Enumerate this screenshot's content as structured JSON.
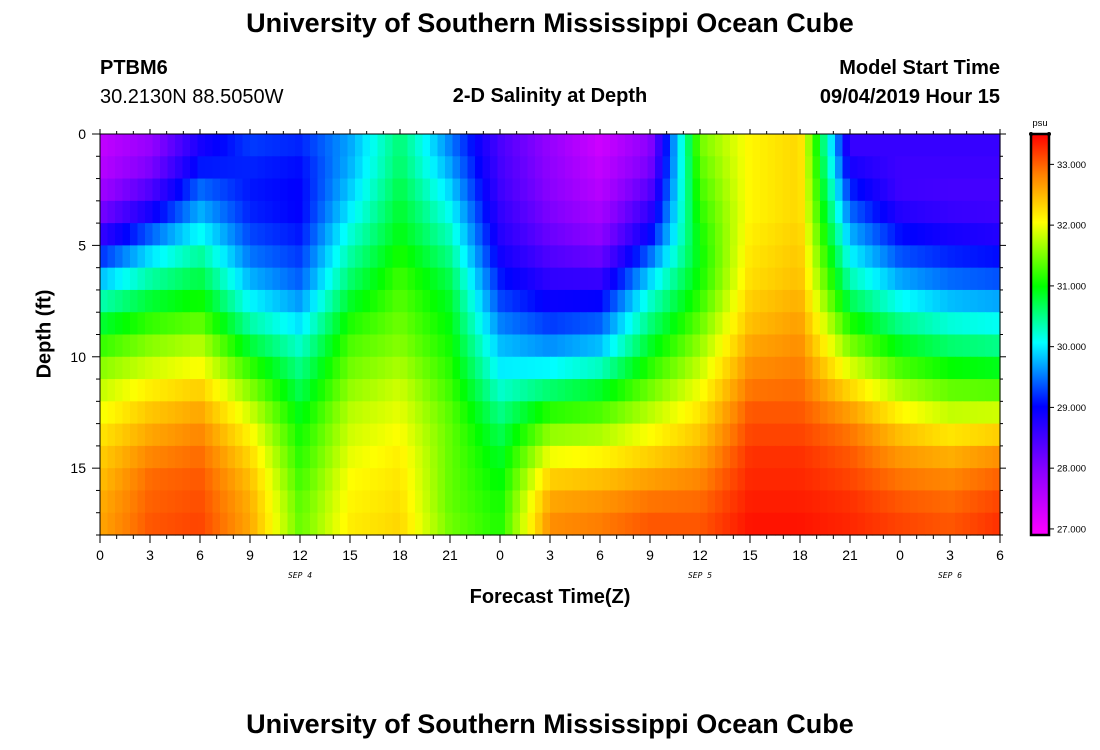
{
  "header": {
    "title": "University of Southern Mississippi Ocean Cube",
    "station": "PTBM6",
    "coords": "30.2130N 88.5050W",
    "subtitle": "2-D Salinity at Depth",
    "start_label": "Model Start Time",
    "start_value": "09/04/2019 Hour 15"
  },
  "footer": {
    "title": "University of Southern Mississippi Ocean Cube"
  },
  "chart_data": {
    "type": "heatmap",
    "title": "2-D Salinity at Depth",
    "xlabel": "Forecast Time(Z)",
    "ylabel": "Depth (ft)",
    "x_start_hour": 0,
    "x_end_hour": 54,
    "x_tick_labels": [
      "0",
      "3",
      "6",
      "9",
      "12",
      "15",
      "18",
      "21",
      "0",
      "3",
      "6",
      "9",
      "12",
      "15",
      "18",
      "21",
      "0",
      "3",
      "6"
    ],
    "date_labels": [
      {
        "label": "SEP 4",
        "hour": 12
      },
      {
        "label": "SEP 5",
        "hour": 36
      },
      {
        "label": "SEP 6",
        "hour": 51
      }
    ],
    "y_ticks": [
      0,
      5,
      10,
      15
    ],
    "ylim": [
      0,
      18
    ],
    "colorbar": {
      "unit": "psu",
      "min": 26.9,
      "max": 33.5,
      "tick_values": [
        27.0,
        28.0,
        29.0,
        30.0,
        31.0,
        32.0,
        33.0
      ],
      "tick_labels": [
        "27.000",
        "28.000",
        "29.000",
        "30.000",
        "31.000",
        "32.000",
        "33.000"
      ]
    },
    "depth_levels_ft": [
      0,
      1,
      2,
      3,
      4,
      5,
      6,
      7,
      8,
      9,
      10,
      11,
      12,
      13,
      14,
      15,
      16,
      17,
      18
    ],
    "time_hours": [
      0,
      3,
      6,
      9,
      12,
      15,
      18,
      21,
      24,
      27,
      30,
      33,
      36,
      39,
      42,
      45,
      48,
      51,
      54
    ],
    "salinity_psu": [
      [
        27.4,
        27.8,
        28.8,
        29.3,
        29.2,
        29.7,
        30.6,
        29.5,
        28.4,
        27.8,
        27.3,
        27.9,
        31.5,
        32.1,
        32.3,
        28.5,
        28.6,
        28.6,
        28.6
      ],
      [
        27.5,
        27.9,
        28.9,
        29.2,
        29.1,
        29.7,
        30.6,
        29.6,
        28.5,
        27.9,
        27.4,
        28.0,
        31.4,
        32.1,
        32.3,
        28.7,
        28.6,
        28.6,
        28.6
      ],
      [
        27.6,
        28.2,
        29.3,
        29.1,
        29.0,
        29.8,
        30.7,
        29.8,
        28.5,
        27.9,
        27.5,
        28.2,
        31.3,
        32.1,
        32.3,
        29.0,
        28.5,
        28.5,
        28.5
      ],
      [
        27.9,
        28.6,
        29.6,
        29.1,
        29.0,
        29.9,
        30.8,
        30.0,
        28.6,
        28.0,
        27.6,
        28.5,
        31.2,
        32.1,
        32.3,
        29.3,
        28.6,
        28.5,
        28.5
      ],
      [
        28.3,
        29.1,
        29.9,
        29.2,
        29.0,
        30.1,
        30.9,
        30.2,
        28.7,
        28.1,
        27.8,
        28.8,
        31.1,
        32.1,
        32.3,
        29.6,
        28.9,
        28.7,
        28.6
      ],
      [
        28.9,
        29.7,
        30.3,
        29.4,
        29.2,
        30.3,
        31.0,
        30.4,
        28.8,
        28.3,
        28.0,
        29.2,
        31.0,
        32.2,
        32.4,
        29.9,
        29.2,
        29.0,
        28.9
      ],
      [
        29.5,
        30.2,
        30.6,
        29.6,
        29.3,
        30.5,
        31.2,
        30.6,
        29.0,
        28.5,
        28.4,
        29.7,
        31.0,
        32.2,
        32.4,
        30.2,
        29.5,
        29.3,
        29.2
      ],
      [
        30.1,
        30.6,
        30.9,
        29.9,
        29.5,
        30.7,
        31.3,
        30.8,
        29.2,
        28.8,
        28.8,
        30.1,
        31.1,
        32.3,
        32.5,
        30.5,
        29.9,
        29.6,
        29.5
      ],
      [
        30.6,
        31.0,
        31.2,
        30.2,
        29.8,
        31.0,
        31.4,
        30.9,
        29.4,
        29.1,
        29.2,
        30.4,
        31.3,
        32.4,
        32.6,
        30.9,
        30.3,
        30.0,
        29.9
      ],
      [
        31.0,
        31.4,
        31.6,
        30.6,
        30.1,
        31.2,
        31.5,
        31.0,
        29.7,
        29.4,
        29.6,
        30.7,
        31.5,
        32.5,
        32.7,
        31.3,
        30.7,
        30.4,
        30.3
      ],
      [
        31.4,
        31.7,
        31.9,
        31.0,
        30.4,
        31.4,
        31.6,
        31.1,
        29.9,
        29.8,
        30.0,
        31.0,
        31.7,
        32.7,
        32.8,
        31.7,
        31.1,
        30.8,
        30.7
      ],
      [
        31.7,
        32.0,
        32.2,
        31.4,
        30.6,
        31.5,
        31.8,
        31.2,
        30.1,
        30.3,
        30.6,
        31.3,
        31.9,
        32.8,
        32.9,
        32.1,
        31.5,
        31.2,
        31.1
      ],
      [
        31.9,
        32.3,
        32.5,
        31.7,
        30.8,
        31.7,
        31.9,
        31.3,
        30.4,
        30.9,
        31.1,
        31.6,
        32.1,
        33.0,
        33.0,
        32.5,
        31.9,
        31.6,
        31.6
      ],
      [
        32.1,
        32.5,
        32.7,
        32.0,
        31.0,
        31.8,
        32.0,
        31.4,
        30.6,
        31.4,
        31.5,
        31.9,
        32.3,
        33.1,
        33.1,
        32.8,
        32.3,
        32.0,
        32.1
      ],
      [
        32.3,
        32.7,
        32.9,
        32.2,
        31.1,
        31.9,
        32.1,
        31.4,
        30.8,
        31.8,
        31.9,
        32.2,
        32.5,
        33.2,
        33.2,
        33.0,
        32.6,
        32.4,
        32.6
      ],
      [
        32.4,
        32.9,
        33.0,
        32.4,
        31.2,
        32.0,
        32.2,
        31.4,
        30.9,
        32.2,
        32.3,
        32.5,
        32.7,
        33.3,
        33.3,
        33.1,
        32.8,
        32.7,
        32.9
      ],
      [
        32.5,
        33.0,
        33.1,
        32.5,
        31.3,
        32.1,
        32.2,
        31.4,
        31.0,
        32.5,
        32.6,
        32.8,
        32.9,
        33.3,
        33.3,
        33.2,
        33.0,
        32.9,
        33.1
      ],
      [
        32.6,
        33.0,
        33.1,
        32.6,
        31.4,
        32.1,
        32.3,
        31.4,
        31.1,
        32.7,
        32.8,
        33.0,
        33.0,
        33.4,
        33.4,
        33.3,
        33.1,
        33.0,
        33.2
      ],
      [
        32.6,
        33.1,
        33.2,
        32.6,
        31.4,
        32.2,
        32.3,
        31.5,
        31.1,
        32.8,
        32.9,
        33.1,
        33.1,
        33.4,
        33.4,
        33.3,
        33.2,
        33.1,
        33.3
      ]
    ]
  }
}
